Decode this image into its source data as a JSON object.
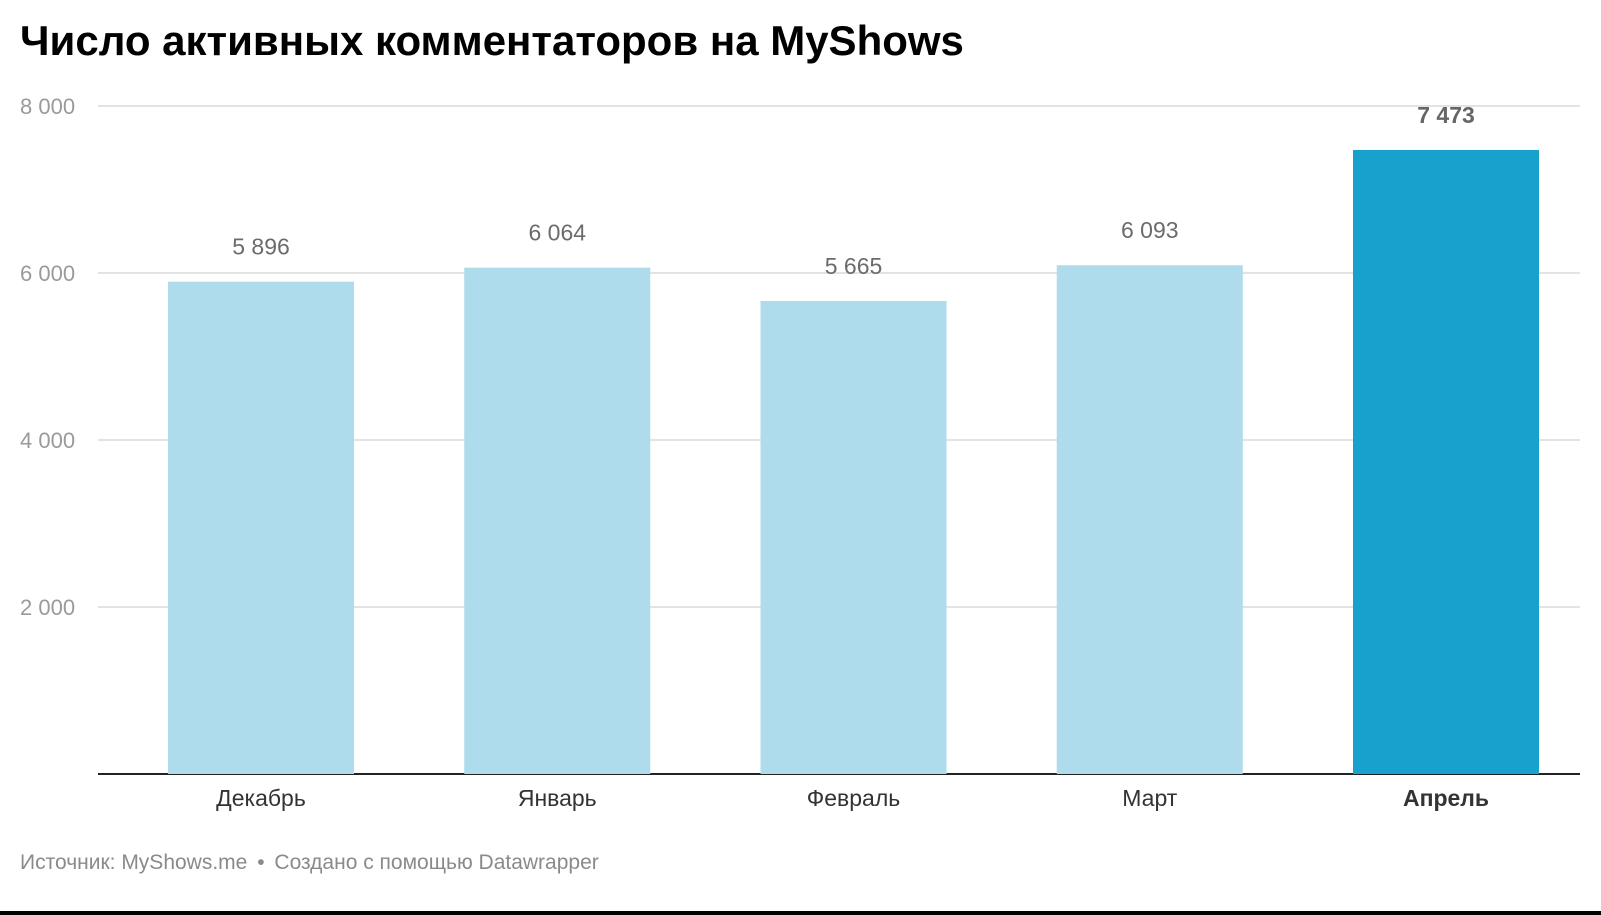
{
  "title": "Число активных комментаторов на MyShows",
  "footer": {
    "source": "Источник: MyShows.me",
    "separator": "•",
    "credit": "Создано с помощью Datawrapper"
  },
  "colors": {
    "bar": "#aedcec",
    "highlight": "#18a1cd",
    "grid": "#e3e3e3",
    "axis": "#222222",
    "tick_label": "#9a9a9a",
    "value_label": "#6b6b6b",
    "highlight_value_label": "#666666",
    "category_label": "#333333"
  },
  "chart_data": {
    "type": "bar",
    "categories": [
      "Декабрь",
      "Январь",
      "Февраль",
      "Март",
      "Апрель"
    ],
    "values": [
      5896,
      6064,
      5665,
      6093,
      7473
    ],
    "value_labels": [
      "5 896",
      "6 064",
      "5 665",
      "6 093",
      "7 473"
    ],
    "highlight_index": 4,
    "ylim": [
      0,
      8000
    ],
    "yticks": [
      2000,
      4000,
      6000,
      8000
    ],
    "ytick_labels": [
      "2 000",
      "4 000",
      "6 000",
      "8 000"
    ],
    "xlabel": "",
    "ylabel": "",
    "grid": true
  }
}
